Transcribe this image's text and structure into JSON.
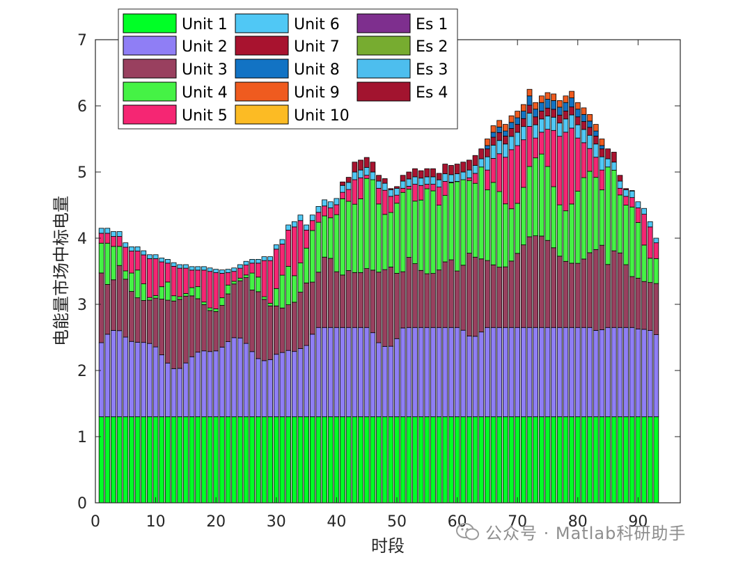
{
  "chart_data": {
    "type": "stacked-bar",
    "xlabel": "时段",
    "ylabel": "电能量市场中标电量",
    "xlim": [
      0,
      97
    ],
    "ylim": [
      0,
      7
    ],
    "xticks": [
      0,
      10,
      20,
      30,
      40,
      50,
      60,
      70,
      80,
      90
    ],
    "yticks": [
      0,
      1,
      2,
      3,
      4,
      5,
      6,
      7
    ],
    "legend_location": "top-left",
    "series": [
      {
        "name": "Unit 1",
        "color": "#00ff26"
      },
      {
        "name": "Unit 2",
        "color": "#8f7ef5"
      },
      {
        "name": "Unit 3",
        "color": "#99405f"
      },
      {
        "name": "Unit 4",
        "color": "#45f245"
      },
      {
        "name": "Unit 5",
        "color": "#f52673"
      },
      {
        "name": "Unit 6",
        "color": "#50c8f5"
      },
      {
        "name": "Unit 7",
        "color": "#a8132f"
      },
      {
        "name": "Unit 8",
        "color": "#1273c4"
      },
      {
        "name": "Unit 9",
        "color": "#ef5b1f"
      },
      {
        "name": "Unit 10",
        "color": "#fcbb24"
      },
      {
        "name": "Es 1",
        "color": "#7e2f8e"
      },
      {
        "name": "Es 2",
        "color": "#77ac30"
      },
      {
        "name": "Es 3",
        "color": "#4dbeee"
      },
      {
        "name": "Es 4",
        "color": "#a2142f"
      }
    ],
    "totals": [
      4.15,
      4.15,
      4.1,
      4.1,
      3.93,
      3.87,
      3.87,
      3.81,
      3.75,
      3.75,
      3.7,
      3.68,
      3.63,
      3.6,
      3.6,
      3.57,
      3.57,
      3.57,
      3.55,
      3.53,
      3.52,
      3.53,
      3.55,
      3.6,
      3.65,
      3.68,
      3.68,
      3.72,
      3.72,
      3.9,
      3.98,
      4.2,
      4.25,
      4.35,
      4.2,
      4.35,
      4.48,
      4.58,
      4.55,
      4.6,
      4.85,
      4.92,
      5.15,
      5.18,
      5.22,
      5.15,
      4.95,
      4.9,
      4.75,
      4.78,
      4.95,
      5,
      5.05,
      5.02,
      5.05,
      5.05,
      4.98,
      5.12,
      5.1,
      5.12,
      5.15,
      5.18,
      5.25,
      5.35,
      5.5,
      5.7,
      5.78,
      5.72,
      5.85,
      5.92,
      6.02,
      6.25,
      6.05,
      6.15,
      6.2,
      6.18,
      6.08,
      6.15,
      6.22,
      6.05,
      5.97,
      5.87,
      5.72,
      5.5,
      5.35,
      5.3,
      4.95,
      4.75,
      4.72,
      4.55,
      4.45,
      4.25,
      4.0
    ],
    "legend_cols": [
      [
        "Unit 1",
        "Unit 2",
        "Unit 3",
        "Unit 4",
        "Unit 5"
      ],
      [
        "Unit 6",
        "Unit 7",
        "Unit 8",
        "Unit 9",
        "Unit 10"
      ],
      [
        "Es 1",
        "Es 2",
        "Es 3",
        "Es 4"
      ]
    ]
  },
  "watermark": {
    "text": "公众号 · Matlab科研助手"
  }
}
